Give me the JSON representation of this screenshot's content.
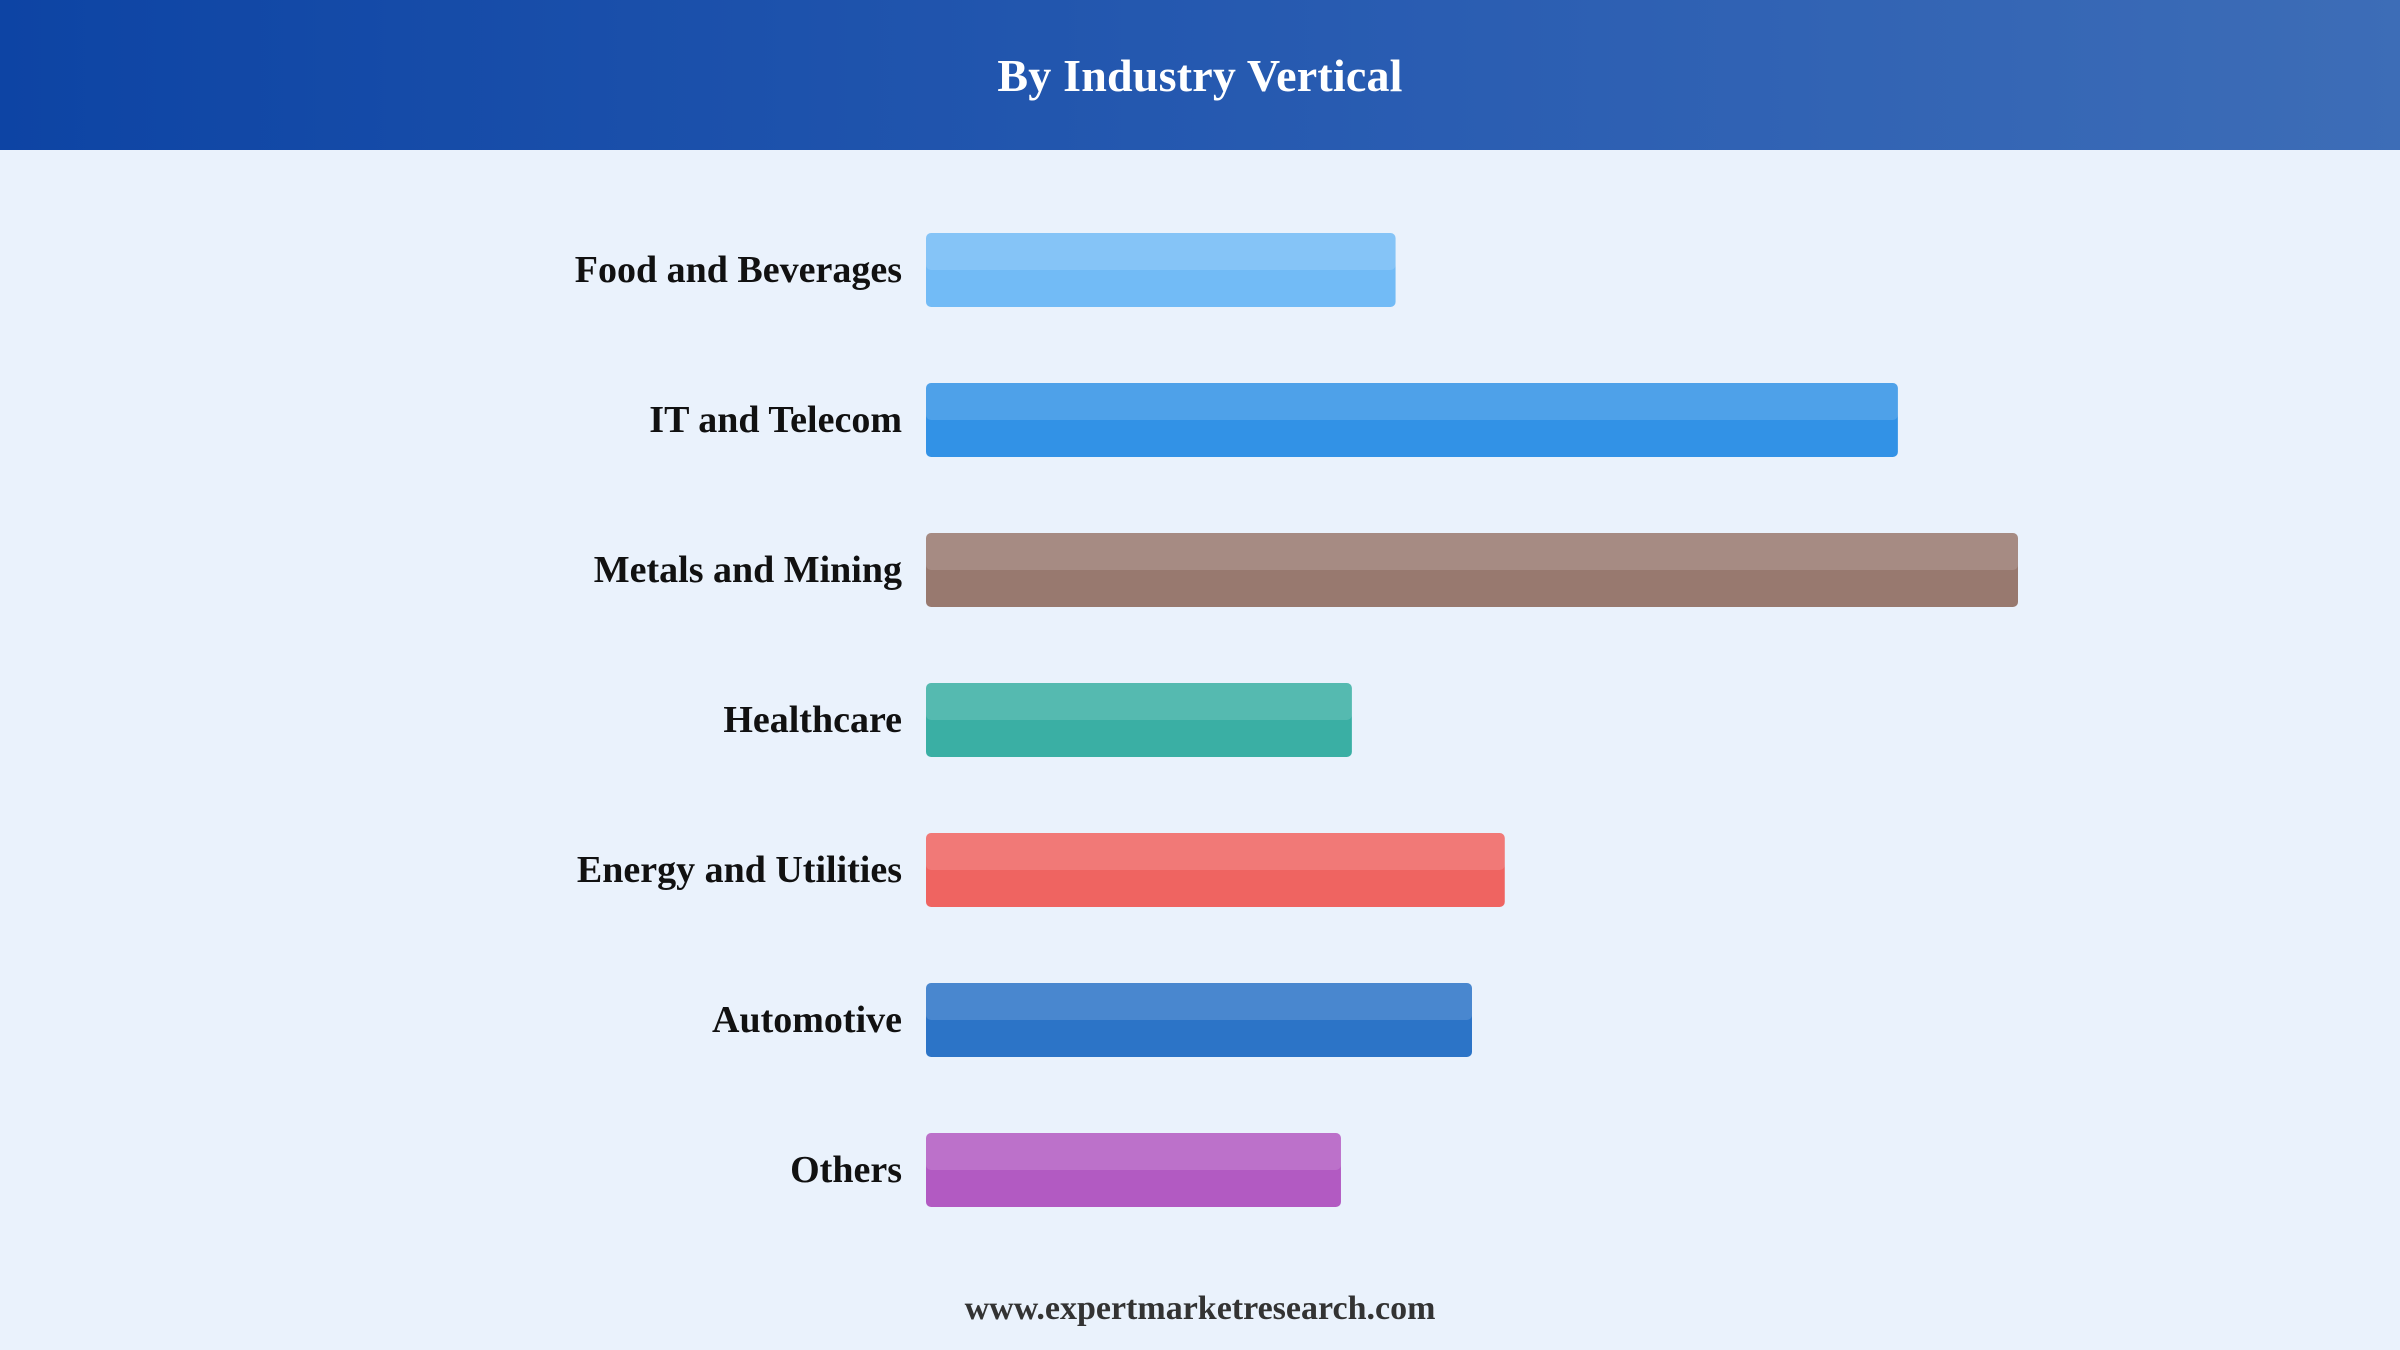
{
  "header": {
    "title": "By Industry Vertical"
  },
  "footer": {
    "website": "www.expertmarketresearch.com"
  },
  "colors": {
    "background": "#eaf2fc",
    "header_start": "#0d44a4",
    "header_end": "#3d6db7",
    "label_text": "#111111"
  },
  "chart_data": {
    "type": "bar",
    "orientation": "horizontal",
    "title": "By Industry Vertical",
    "xlabel": "",
    "ylabel": "",
    "xlim": [
      0,
      100
    ],
    "grid": false,
    "legend": "none",
    "categories": [
      "Food and Beverages",
      "IT and Telecom",
      "Metals and Mining",
      "Healthcare",
      "Energy and Utilities",
      "Automotive",
      "Others"
    ],
    "values": [
      43,
      89,
      100,
      39,
      53,
      50,
      38
    ],
    "bar_colors": [
      "#72bbf6",
      "#3292e6",
      "#98796f",
      "#3aafa4",
      "#ef6461",
      "#2c74c7",
      "#b25ac2"
    ]
  }
}
